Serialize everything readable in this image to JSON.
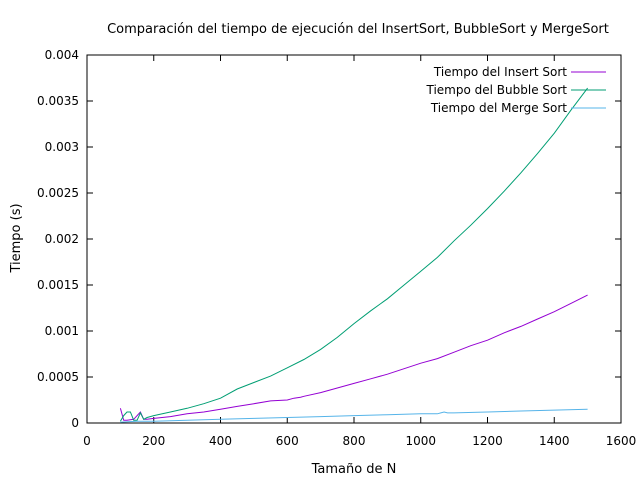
{
  "chart_data": {
    "type": "line",
    "title": "Comparación del tiempo de ejecución del InsertSort, BubbleSort y MergeSort",
    "xlabel": "Tamaño de N",
    "ylabel": "Tiempo (s)",
    "xlim": [
      0,
      1600
    ],
    "ylim": [
      0,
      0.004
    ],
    "xticks": [
      0,
      200,
      400,
      600,
      800,
      1000,
      1200,
      1400,
      1600
    ],
    "yticks": [
      0,
      0.0005,
      0.001,
      0.0015,
      0.002,
      0.0025,
      0.003,
      0.0035,
      0.004
    ],
    "xtick_labels": [
      "0",
      "200",
      "400",
      "600",
      "800",
      "1000",
      "1200",
      "1400",
      "1600"
    ],
    "ytick_labels": [
      "0",
      "0.0005",
      "0.001",
      "0.0015",
      "0.002",
      "0.0025",
      "0.003",
      "0.0035",
      "0.004"
    ],
    "grid": false,
    "legend_position": "top-right",
    "series": [
      {
        "name": "Tiempo del Insert Sort",
        "color": "#9400d3",
        "x": [
          100,
          110,
          120,
          140,
          160,
          170,
          180,
          200,
          250,
          300,
          350,
          400,
          450,
          500,
          550,
          600,
          620,
          640,
          650,
          700,
          750,
          800,
          850,
          900,
          950,
          1000,
          1050,
          1100,
          1150,
          1200,
          1250,
          1300,
          1350,
          1400,
          1450,
          1500
        ],
        "y": [
          0.00016,
          3e-05,
          3e-05,
          4e-05,
          0.00012,
          4e-05,
          4e-05,
          5e-05,
          7e-05,
          0.0001,
          0.00012,
          0.00015,
          0.00018,
          0.00021,
          0.00024,
          0.00025,
          0.00027,
          0.00028,
          0.00029,
          0.00033,
          0.00038,
          0.00043,
          0.00048,
          0.00053,
          0.00059,
          0.00065,
          0.0007,
          0.00077,
          0.00084,
          0.0009,
          0.00098,
          0.00105,
          0.00113,
          0.00121,
          0.0013,
          0.00139
        ]
      },
      {
        "name": "Tiempo del Bubble Sort",
        "color": "#009e73",
        "x": [
          100,
          110,
          120,
          130,
          140,
          150,
          160,
          170,
          180,
          200,
          250,
          300,
          350,
          400,
          450,
          500,
          550,
          600,
          650,
          700,
          750,
          800,
          850,
          900,
          950,
          1000,
          1050,
          1100,
          1150,
          1200,
          1250,
          1300,
          1350,
          1400,
          1450,
          1500
        ],
        "y": [
          2e-05,
          8e-05,
          0.00012,
          0.00012,
          3e-05,
          3e-05,
          0.00011,
          4e-05,
          6e-05,
          8e-05,
          0.00012,
          0.00016,
          0.00021,
          0.00027,
          0.00037,
          0.00044,
          0.00051,
          0.0006,
          0.00069,
          0.0008,
          0.00093,
          0.00108,
          0.00122,
          0.00135,
          0.0015,
          0.00165,
          0.0018,
          0.00198,
          0.00215,
          0.00233,
          0.00252,
          0.00272,
          0.00293,
          0.00315,
          0.0034,
          0.00364
        ]
      },
      {
        "name": "Tiempo del Merge Sort",
        "color": "#56b4e9",
        "x": [
          100,
          150,
          200,
          300,
          400,
          500,
          600,
          700,
          800,
          900,
          1000,
          1050,
          1060,
          1070,
          1080,
          1100,
          1200,
          1300,
          1400,
          1500
        ],
        "y": [
          1e-05,
          2e-05,
          2e-05,
          3e-05,
          4e-05,
          5e-05,
          6e-05,
          7e-05,
          8e-05,
          9e-05,
          0.0001,
          0.0001,
          0.00011,
          0.00012,
          0.00011,
          0.00011,
          0.00012,
          0.00013,
          0.00014,
          0.00015
        ]
      }
    ]
  }
}
